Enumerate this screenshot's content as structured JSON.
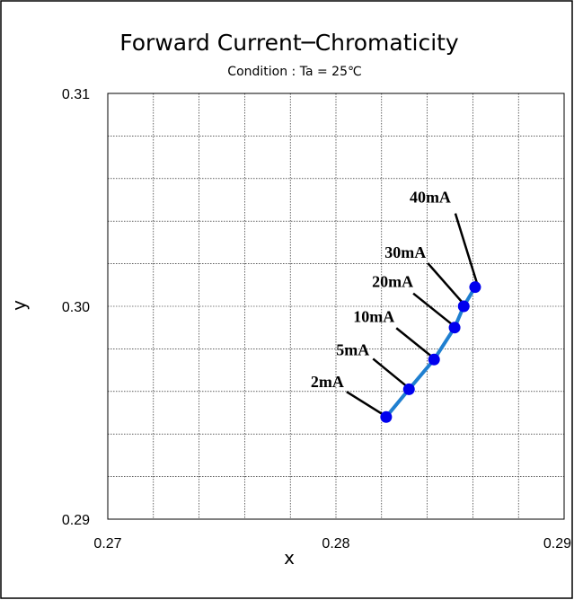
{
  "chart_data": {
    "type": "line",
    "title": "Forward Current─Chromaticity",
    "subtitle": "Condition : Ta = 25℃",
    "xlabel": "x",
    "ylabel": "y",
    "xlim": [
      0.27,
      0.29
    ],
    "ylim": [
      0.29,
      0.31
    ],
    "x_ticks": [
      "0.27",
      "0.28",
      "0.29"
    ],
    "y_ticks": [
      "0.29",
      "0.30",
      "0.31"
    ],
    "grid": true,
    "series": [
      {
        "color": "#1f7fd0",
        "marker_color": "#0000ee",
        "points": [
          {
            "x": 0.2822,
            "y": 0.2948,
            "label": "2mA"
          },
          {
            "x": 0.2832,
            "y": 0.2961,
            "label": "5mA"
          },
          {
            "x": 0.2843,
            "y": 0.2975,
            "label": "10mA"
          },
          {
            "x": 0.2852,
            "y": 0.299,
            "label": "20mA"
          },
          {
            "x": 0.2856,
            "y": 0.3,
            "label": "30mA"
          },
          {
            "x": 0.2861,
            "y": 0.3009,
            "label": "40mA"
          }
        ]
      }
    ]
  }
}
